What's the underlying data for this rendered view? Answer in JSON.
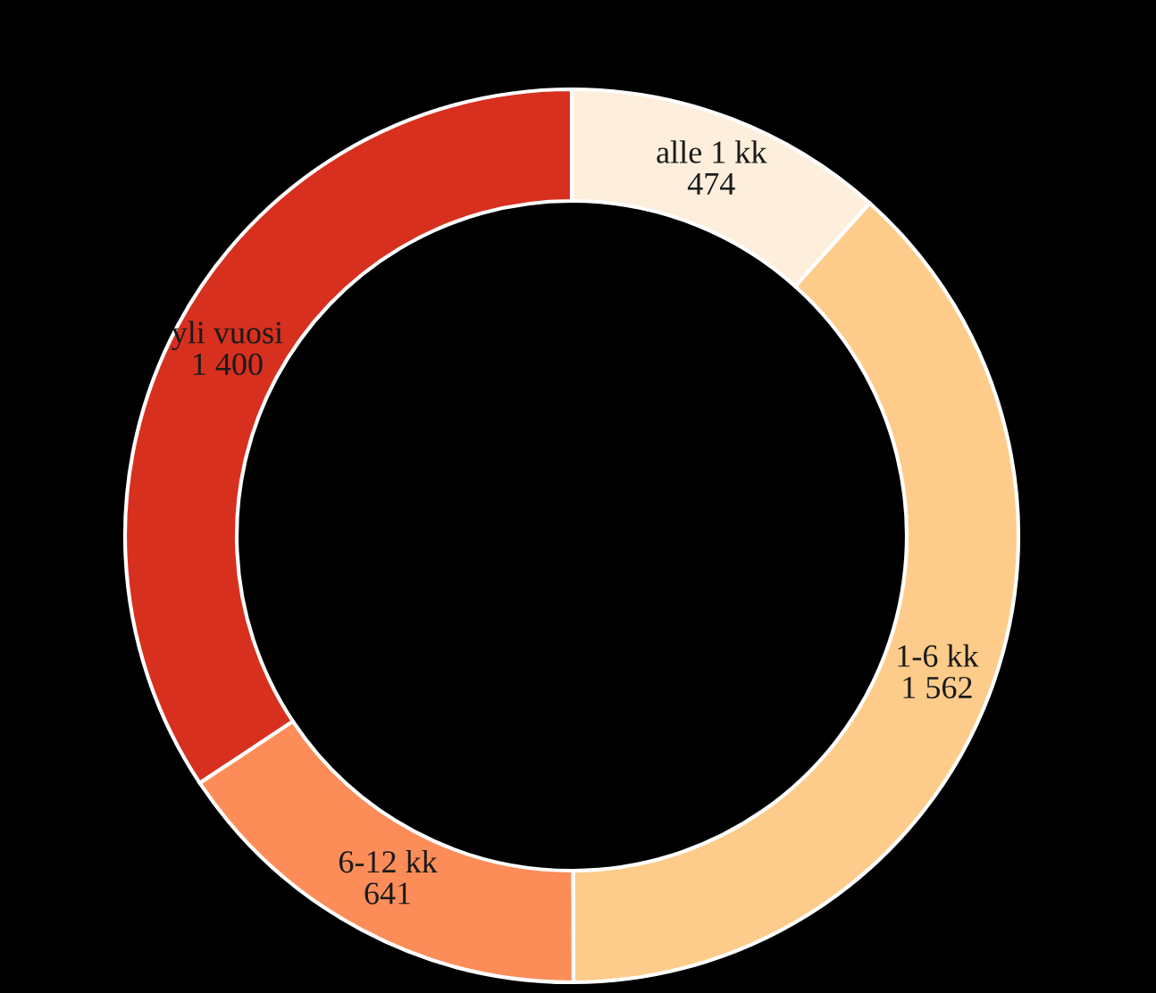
{
  "chart_data": {
    "type": "donut",
    "categories": [
      "alle 1 kk",
      "1-6 kk",
      "6-12 kk",
      "yli vuosi"
    ],
    "values": [
      474,
      1562,
      641,
      1400
    ],
    "value_labels": [
      "474",
      "1 562",
      "641",
      "1 400"
    ],
    "colors": [
      "#fdefdb",
      "#fdcc8a",
      "#fc8d59",
      "#d7301f"
    ]
  }
}
